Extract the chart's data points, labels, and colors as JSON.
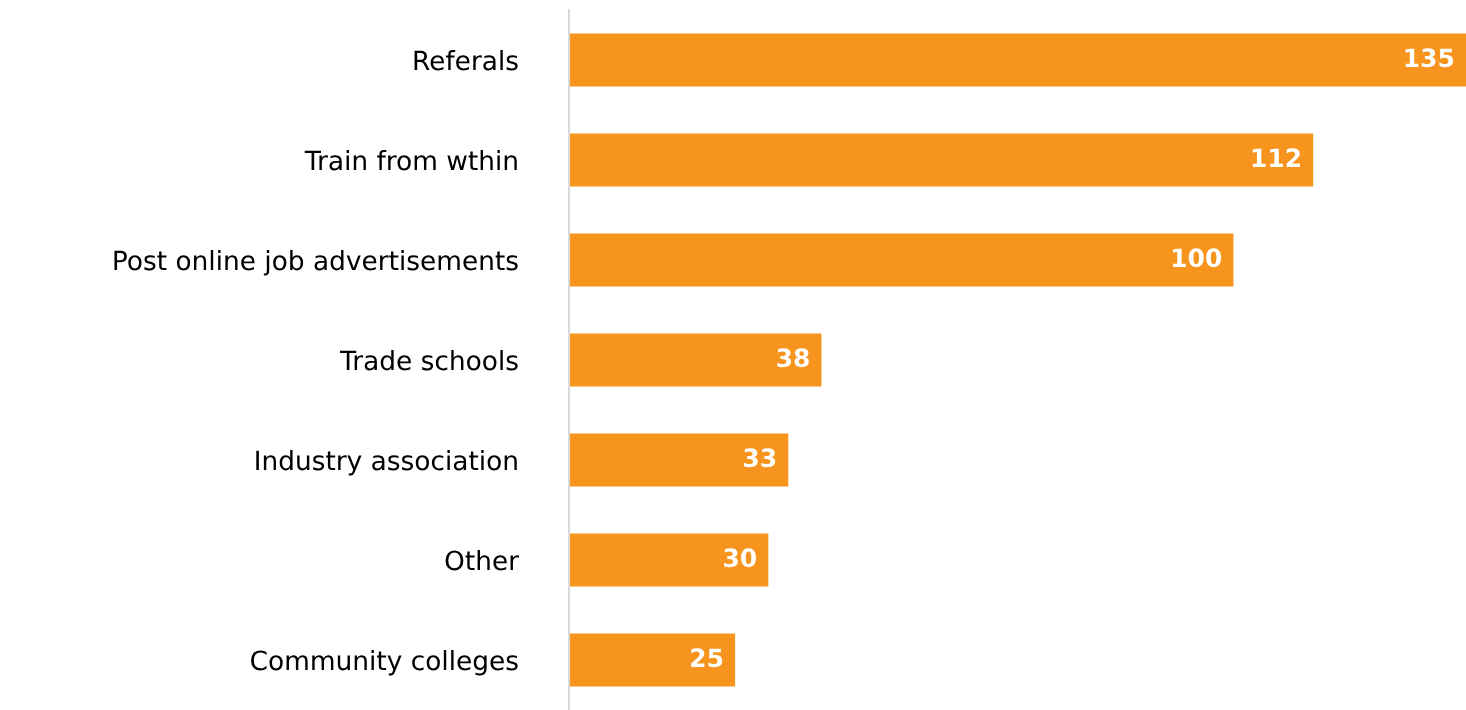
{
  "chart_data": {
    "type": "bar",
    "orientation": "horizontal",
    "categories": [
      "Referals",
      "Train from wthin",
      "Post online job advertisements",
      "Trade schools",
      "Industry association",
      "Other",
      "Community colleges"
    ],
    "values": [
      135,
      112,
      100,
      38,
      33,
      30,
      25
    ],
    "color": "#f7941d",
    "data_labels": true,
    "tick_labels": "y",
    "grid": false,
    "legend": false
  }
}
